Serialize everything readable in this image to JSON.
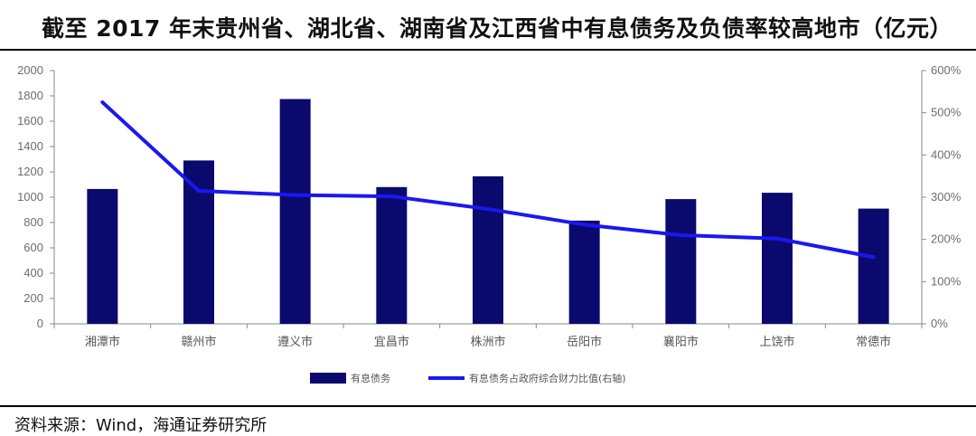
{
  "header": {
    "title": "截至 2017 年末贵州省、湖北省、湖南省及江西省中有息债务及负债率较高地市（亿元）"
  },
  "footer": {
    "source": "资料来源：Wind，海通证券研究所"
  },
  "colors": {
    "bar": "#0a0a6e",
    "line": "#1c17f0",
    "axis": "#8a8a8a"
  },
  "chart_data": {
    "type": "bar",
    "categories": [
      "湘潭市",
      "赣州市",
      "遵义市",
      "宜昌市",
      "株洲市",
      "岳阳市",
      "襄阳市",
      "上饶市",
      "常德市"
    ],
    "series": [
      {
        "name": "有息债务",
        "type": "bar",
        "axis": "left",
        "values": [
          1065,
          1290,
          1775,
          1080,
          1165,
          815,
          985,
          1035,
          910
        ]
      },
      {
        "name": "有息债务占政府综合财力比值(右轴)",
        "type": "line",
        "axis": "right",
        "values": [
          5.25,
          3.15,
          3.05,
          3.02,
          2.72,
          2.35,
          2.1,
          2.02,
          1.58
        ]
      }
    ],
    "ylim": [
      0,
      2000
    ],
    "yticks": [
      "0",
      "200",
      "400",
      "600",
      "800",
      "1000",
      "1200",
      "1400",
      "1600",
      "1800",
      "2000"
    ],
    "y2lim": [
      0,
      6
    ],
    "y2ticks": [
      "0%",
      "100%",
      "200%",
      "300%",
      "400%",
      "500%",
      "600%"
    ],
    "legend": "bottom",
    "grid": false
  }
}
